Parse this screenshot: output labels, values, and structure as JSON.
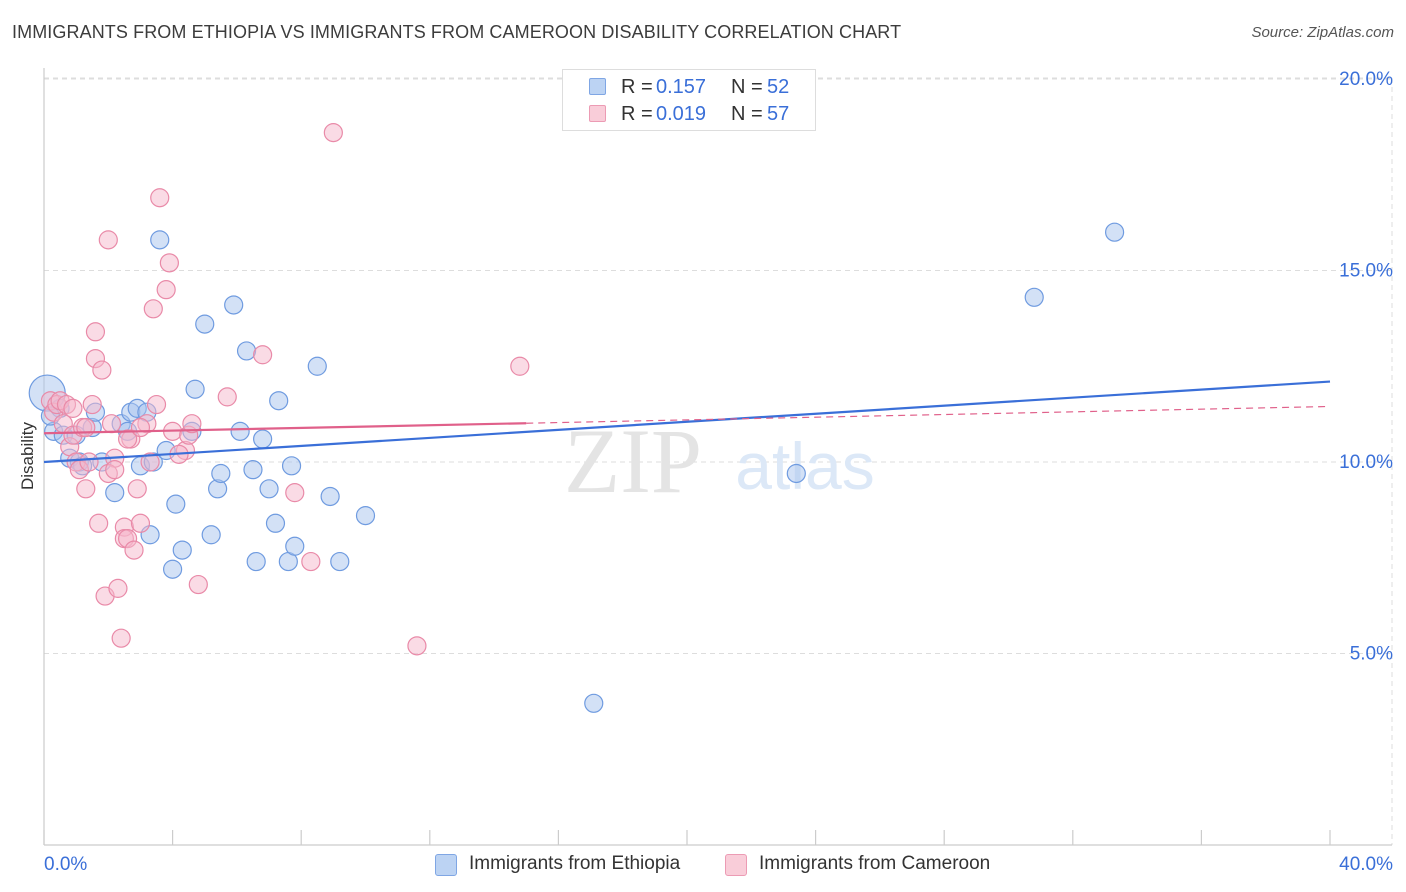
{
  "title": "IMMIGRANTS FROM ETHIOPIA VS IMMIGRANTS FROM CAMEROON DISABILITY CORRELATION CHART",
  "source": "Source: ZipAtlas.com",
  "watermark": {
    "zip": "ZIP",
    "atlas": "atlas"
  },
  "legend": {
    "r_label": "R =",
    "n_label": "N =",
    "ethiopia": {
      "r": "0.157",
      "n": "52"
    },
    "cameroon": {
      "r": "0.019",
      "n": "57"
    }
  },
  "colors": {
    "ethiopia_fill": "#a8c4ee",
    "ethiopia_stroke": "#6f9be0",
    "ethiopia_line": "#3a6fd8",
    "cameroon_fill": "#f5b8cb",
    "cameroon_stroke": "#e98aa8",
    "cameroon_line": "#e0608a",
    "tick_label": "#3a6fd8",
    "grid": "#dddddd"
  },
  "chart_data": {
    "type": "scatter",
    "title": "IMMIGRANTS FROM ETHIOPIA VS IMMIGRANTS FROM CAMEROON DISABILITY CORRELATION CHART",
    "xlabel": "",
    "ylabel": "Disability",
    "xlim": [
      0,
      40
    ],
    "ylim": [
      0,
      21
    ],
    "x_tick_labels": [
      {
        "value": 0,
        "label": "0.0%"
      },
      {
        "value": 40,
        "label": "40.0%"
      }
    ],
    "y_tick_labels": [
      {
        "value": 5,
        "label": "5.0%"
      },
      {
        "value": 10,
        "label": "10.0%"
      },
      {
        "value": 15,
        "label": "15.0%"
      },
      {
        "value": 20,
        "label": "20.0%"
      }
    ],
    "series": [
      {
        "name": "Immigrants from Ethiopia",
        "color": "#6f9be0",
        "trend": {
          "x": [
            0,
            40
          ],
          "y": [
            10.0,
            12.1
          ],
          "dashed_from": null
        },
        "points": [
          [
            0.1,
            11.8
          ],
          [
            0.3,
            10.8
          ],
          [
            0.5,
            11.4
          ],
          [
            0.6,
            10.7
          ],
          [
            0.8,
            10.1
          ],
          [
            1.0,
            10.7
          ],
          [
            1.1,
            10.0
          ],
          [
            1.2,
            9.9
          ],
          [
            1.5,
            10.9
          ],
          [
            1.6,
            11.3
          ],
          [
            1.8,
            10.0
          ],
          [
            2.2,
            9.2
          ],
          [
            2.4,
            11.0
          ],
          [
            2.6,
            10.8
          ],
          [
            2.7,
            11.3
          ],
          [
            2.9,
            11.4
          ],
          [
            3.0,
            9.9
          ],
          [
            3.2,
            11.3
          ],
          [
            3.3,
            8.1
          ],
          [
            3.4,
            10.0
          ],
          [
            3.6,
            15.8
          ],
          [
            3.8,
            10.3
          ],
          [
            4.0,
            7.2
          ],
          [
            4.1,
            8.9
          ],
          [
            4.3,
            7.7
          ],
          [
            4.6,
            10.8
          ],
          [
            4.7,
            11.9
          ],
          [
            5.0,
            13.6
          ],
          [
            5.2,
            8.1
          ],
          [
            5.4,
            9.3
          ],
          [
            5.5,
            9.7
          ],
          [
            5.9,
            14.1
          ],
          [
            6.1,
            10.8
          ],
          [
            6.3,
            12.9
          ],
          [
            6.5,
            9.8
          ],
          [
            6.6,
            7.4
          ],
          [
            6.8,
            10.6
          ],
          [
            7.0,
            9.3
          ],
          [
            7.2,
            8.4
          ],
          [
            7.3,
            11.6
          ],
          [
            7.6,
            7.4
          ],
          [
            7.7,
            9.9
          ],
          [
            7.8,
            7.8
          ],
          [
            8.5,
            12.5
          ],
          [
            8.9,
            9.1
          ],
          [
            9.2,
            7.4
          ],
          [
            10.0,
            8.6
          ],
          [
            17.1,
            3.7
          ],
          [
            23.4,
            9.7
          ],
          [
            30.8,
            14.3
          ],
          [
            33.3,
            16.0
          ],
          [
            0.2,
            11.2
          ]
        ]
      },
      {
        "name": "Immigrants from Cameroon",
        "color": "#e98aa8",
        "trend": {
          "x": [
            0,
            40
          ],
          "y": [
            10.75,
            11.45
          ],
          "dashed_from": 15
        },
        "points": [
          [
            0.2,
            11.6
          ],
          [
            0.3,
            11.3
          ],
          [
            0.4,
            11.5
          ],
          [
            0.5,
            11.6
          ],
          [
            0.6,
            11.0
          ],
          [
            0.7,
            11.5
          ],
          [
            0.8,
            10.4
          ],
          [
            0.9,
            10.7
          ],
          [
            1.0,
            10.0
          ],
          [
            1.1,
            9.8
          ],
          [
            1.2,
            10.9
          ],
          [
            1.3,
            9.3
          ],
          [
            1.4,
            10.0
          ],
          [
            1.5,
            11.5
          ],
          [
            1.6,
            12.7
          ],
          [
            1.6,
            13.4
          ],
          [
            1.7,
            8.4
          ],
          [
            1.8,
            12.4
          ],
          [
            1.9,
            6.5
          ],
          [
            2.0,
            15.8
          ],
          [
            2.1,
            11.0
          ],
          [
            2.2,
            10.1
          ],
          [
            2.3,
            6.7
          ],
          [
            2.4,
            5.4
          ],
          [
            2.5,
            8.3
          ],
          [
            2.5,
            8.0
          ],
          [
            2.6,
            8.0
          ],
          [
            2.7,
            10.6
          ],
          [
            2.8,
            7.7
          ],
          [
            2.9,
            9.3
          ],
          [
            3.0,
            8.4
          ],
          [
            3.2,
            11.0
          ],
          [
            3.3,
            10.0
          ],
          [
            3.4,
            14.0
          ],
          [
            3.5,
            11.5
          ],
          [
            3.6,
            16.9
          ],
          [
            3.8,
            14.5
          ],
          [
            3.9,
            15.2
          ],
          [
            4.0,
            10.8
          ],
          [
            4.4,
            10.3
          ],
          [
            4.5,
            10.7
          ],
          [
            4.6,
            11.0
          ],
          [
            4.8,
            6.8
          ],
          [
            5.7,
            11.7
          ],
          [
            6.8,
            12.8
          ],
          [
            7.8,
            9.2
          ],
          [
            8.3,
            7.4
          ],
          [
            9.0,
            18.6
          ],
          [
            11.6,
            5.2
          ],
          [
            14.8,
            12.5
          ],
          [
            0.9,
            11.4
          ],
          [
            1.3,
            10.9
          ],
          [
            2.0,
            9.7
          ],
          [
            2.2,
            9.8
          ],
          [
            2.6,
            10.6
          ],
          [
            3.0,
            10.9
          ],
          [
            4.2,
            10.2
          ]
        ]
      }
    ]
  },
  "bottom_legend": {
    "ethiopia": "Immigrants from Ethiopia",
    "cameroon": "Immigrants from Cameroon"
  }
}
